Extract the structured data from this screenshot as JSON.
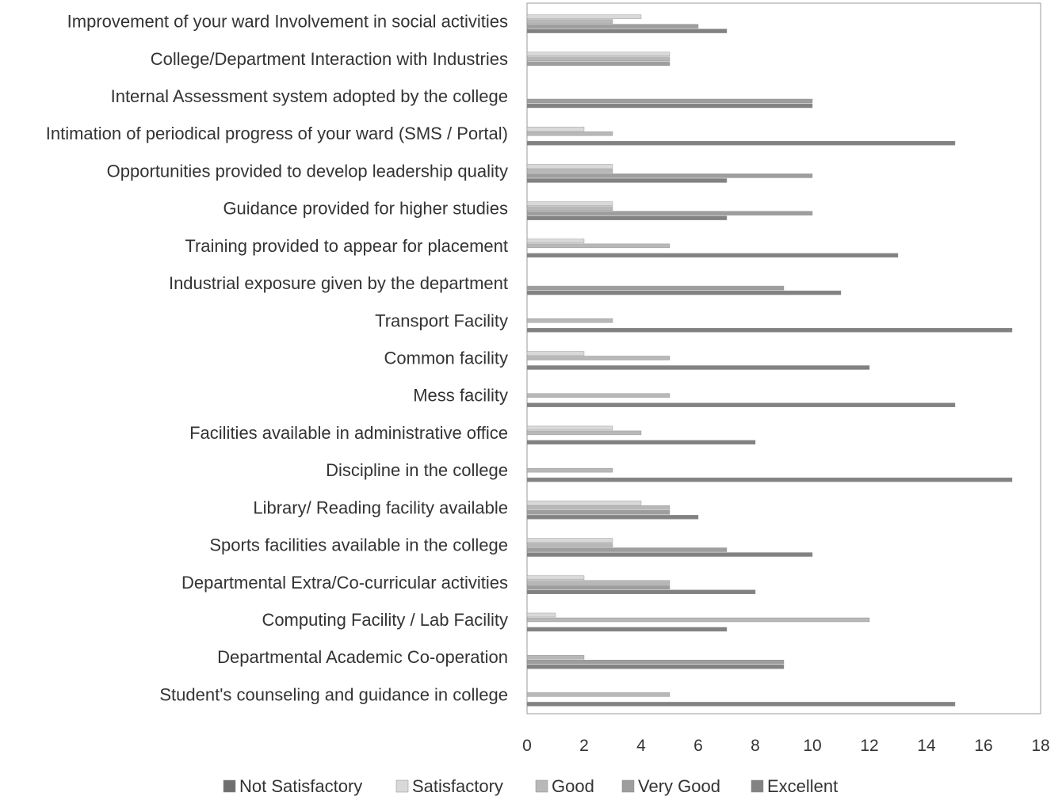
{
  "chart_data": {
    "type": "bar",
    "orientation": "horizontal",
    "categories": [
      "Improvement  of your  ward Involvement in social activities",
      "College/Department Interaction with Industries",
      "Internal Assessment system adopted by the college",
      "Intimation of periodical progress of your ward (SMS / Portal)",
      "Opportunities provided to develop leadership quality",
      "Guidance provided for higher studies",
      "Training provided to appear for placement",
      "Industrial exposure given by the department",
      "Transport Facility",
      "Common facility",
      "Mess facility",
      "Facilities available in administrative office",
      "Discipline in the college",
      "Library/ Reading facility available",
      "Sports facilities available in the college",
      "Departmental Extra/Co-curricular activities",
      "Computing Facility / Lab Facility",
      "Departmental Academic Co-operation",
      "Student's counseling and guidance in college"
    ],
    "series": [
      {
        "name": "Not Satisfactory",
        "color": "#6f6f6f",
        "values": [
          0,
          0,
          0,
          0,
          0,
          0,
          0,
          0,
          0,
          0,
          0,
          0,
          0,
          0,
          0,
          0,
          0,
          0,
          0
        ]
      },
      {
        "name": "Satisfactory",
        "color": "#d9d9d9",
        "values": [
          4,
          5,
          0,
          2,
          3,
          3,
          2,
          0,
          0,
          2,
          0,
          3,
          0,
          4,
          3,
          2,
          1,
          0,
          0
        ]
      },
      {
        "name": "Good",
        "color": "#b8b8b8",
        "values": [
          3,
          5,
          0,
          3,
          3,
          3,
          5,
          0,
          3,
          5,
          5,
          4,
          3,
          5,
          3,
          5,
          12,
          2,
          5
        ]
      },
      {
        "name": "Very Good",
        "color": "#9e9e9e",
        "values": [
          6,
          5,
          10,
          0,
          10,
          10,
          0,
          9,
          0,
          0,
          0,
          0,
          0,
          5,
          7,
          5,
          0,
          9,
          0
        ]
      },
      {
        "name": "Excellent",
        "color": "#828282",
        "values": [
          7,
          0,
          10,
          15,
          7,
          7,
          13,
          11,
          17,
          12,
          15,
          8,
          17,
          6,
          10,
          8,
          7,
          9,
          15
        ]
      }
    ],
    "xlim": [
      0,
      18
    ],
    "xticks": [
      "0",
      "2",
      "4",
      "6",
      "8",
      "10",
      "12",
      "14",
      "16",
      "18"
    ],
    "grid": false,
    "legend_position": "bottom"
  }
}
